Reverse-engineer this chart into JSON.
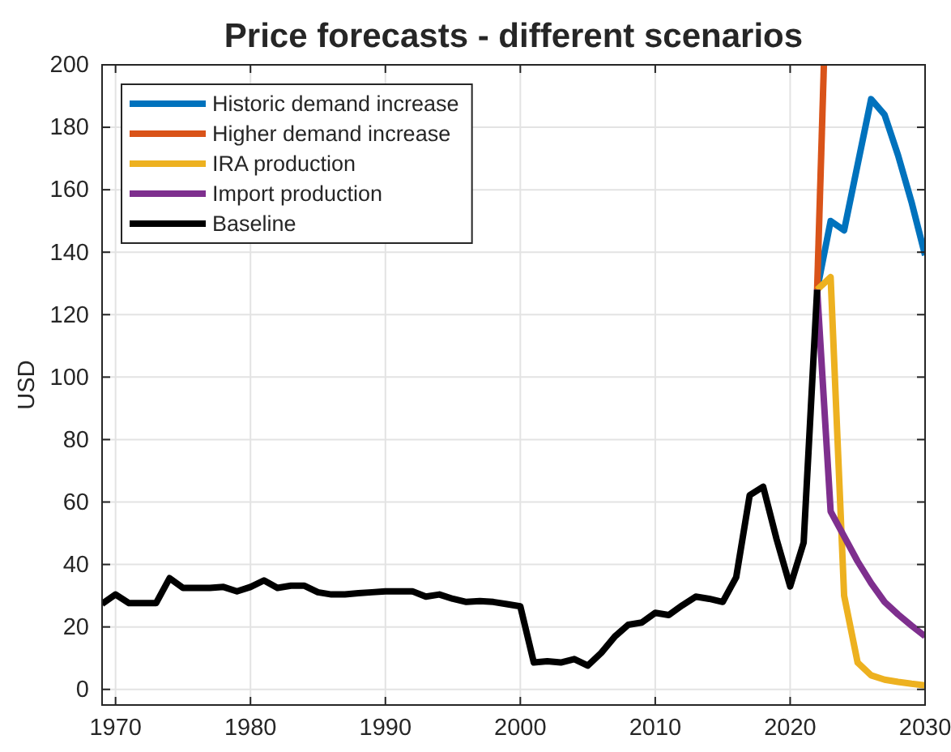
{
  "chart_data": {
    "type": "line",
    "title": "Price forecasts - different scenarios",
    "ylabel": "USD",
    "xlim": [
      1969,
      2030
    ],
    "ylim": [
      -5,
      200
    ],
    "xticks": [
      1970,
      1980,
      1990,
      2000,
      2010,
      2020,
      2030
    ],
    "yticks": [
      0,
      20,
      40,
      60,
      80,
      100,
      120,
      140,
      160,
      180,
      200
    ],
    "grid": true,
    "legend": "top left",
    "series": [
      {
        "name": "Historic demand increase",
        "color": "#0072bd",
        "x": [
          2022,
          2023,
          2024,
          2025,
          2026,
          2027,
          2028,
          2029,
          2030
        ],
        "values": [
          128,
          150,
          147,
          168,
          189,
          184,
          171,
          156,
          139
        ]
      },
      {
        "name": "Higher demand increase",
        "color": "#d95319",
        "x": [
          2022,
          2022.5
        ],
        "values": [
          128,
          200
        ]
      },
      {
        "name": "IRA production",
        "color": "#edb120",
        "x": [
          2022,
          2023,
          2024,
          2025,
          2026,
          2027,
          2028,
          2029,
          2030
        ],
        "values": [
          128,
          132,
          30,
          8.6,
          4.5,
          3.1,
          2.4,
          1.8,
          1.3
        ]
      },
      {
        "name": "Import production",
        "color": "#7e2f8e",
        "x": [
          2022,
          2023,
          2024,
          2025,
          2026,
          2027,
          2028,
          2029,
          2030
        ],
        "values": [
          128,
          57,
          49,
          41,
          34,
          28,
          24,
          20.4,
          17
        ]
      },
      {
        "name": "Baseline",
        "color": "#000000",
        "x": [
          1969,
          1970,
          1971,
          1972,
          1973,
          1974,
          1975,
          1976,
          1977,
          1978,
          1979,
          1980,
          1981,
          1982,
          1983,
          1984,
          1985,
          1986,
          1987,
          1988,
          1989,
          1990,
          1991,
          1992,
          1993,
          1994,
          1995,
          1996,
          1997,
          1998,
          1999,
          2000,
          2001,
          2002,
          2003,
          2004,
          2005,
          2006,
          2007,
          2008,
          2009,
          2010,
          2011,
          2012,
          2013,
          2014,
          2015,
          2016,
          2017,
          2018,
          2019,
          2020,
          2021,
          2022
        ],
        "values": [
          27.4,
          30.4,
          27.6,
          27.6,
          27.6,
          35.6,
          32.5,
          32.5,
          32.5,
          32.8,
          31.4,
          32.8,
          34.9,
          32.5,
          33.2,
          33.2,
          31.1,
          30.4,
          30.4,
          30.8,
          31.1,
          31.4,
          31.4,
          31.4,
          29.7,
          30.4,
          29,
          28,
          28.3,
          28,
          27.3,
          26.6,
          8.6,
          9,
          8.6,
          9.7,
          7.6,
          11.7,
          16.9,
          20.7,
          21.4,
          24.5,
          23.8,
          26.9,
          29.7,
          29,
          28,
          35.9,
          62.2,
          64.9,
          48,
          33,
          47,
          128
        ]
      }
    ]
  }
}
